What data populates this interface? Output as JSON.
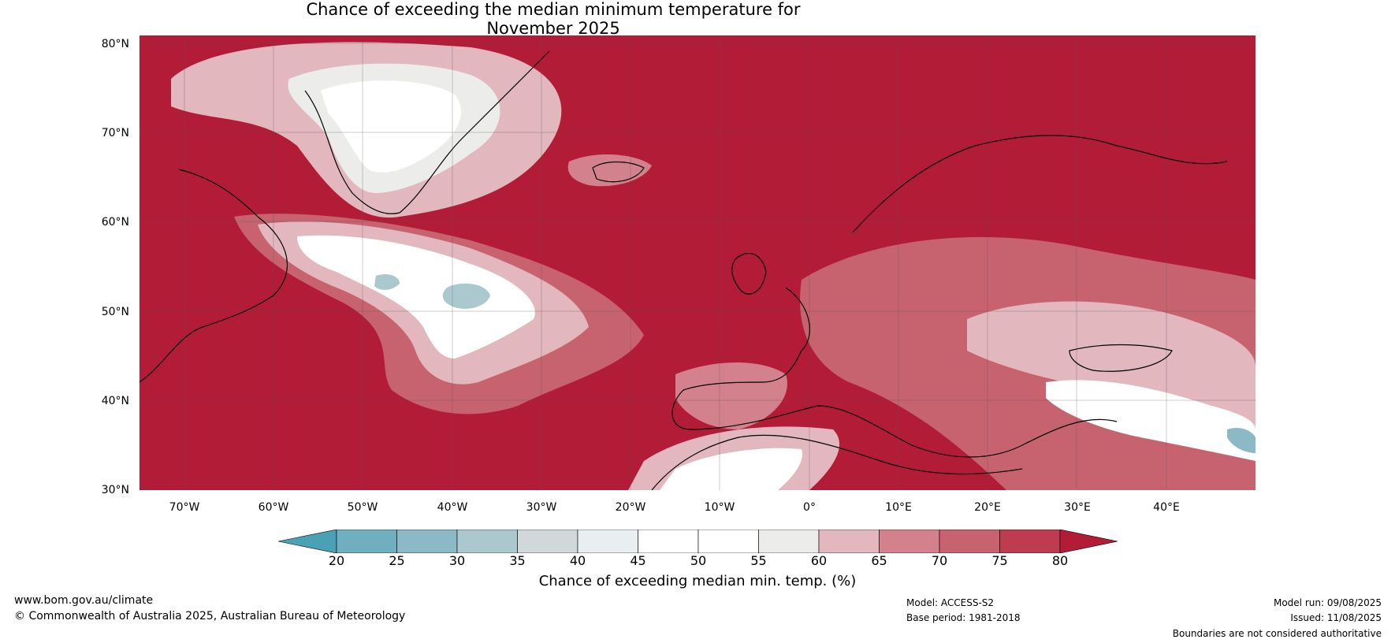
{
  "title_line1": "Chance of exceeding the median minimum temperature for",
  "title_line2": "November 2025",
  "lat_labels": [
    "80°N",
    "70°N",
    "60°N",
    "50°N",
    "40°N",
    "30°N"
  ],
  "lon_labels": [
    "70°W",
    "60°W",
    "50°W",
    "40°W",
    "30°W",
    "20°W",
    "10°W",
    "0°",
    "10°E",
    "20°E",
    "30°E",
    "40°E"
  ],
  "colorbar": {
    "ticks": [
      "20",
      "25",
      "30",
      "35",
      "40",
      "45",
      "50",
      "55",
      "60",
      "65",
      "70",
      "75",
      "80"
    ],
    "colors": [
      "#4ba1b4",
      "#6fafbf",
      "#8cb9c6",
      "#abc8cf",
      "#d0d8da",
      "#e9eff1",
      "#ffffff",
      "#ffffff",
      "#ececea",
      "#e2b7bd",
      "#d3818d",
      "#c7636f",
      "#bd3c50",
      "#b31c37"
    ],
    "title": "Chance of exceeding median min. temp. (%)"
  },
  "footer": {
    "url": "www.bom.gov.au/climate",
    "copyright": "© Commonwealth of Australia 2025, Australian Bureau of Meteorology",
    "model": "Model: ACCESS-S2",
    "base_period": "Base period: 1981-2018",
    "model_run": "Model run: 09/08/2025",
    "issued": "Issued: 11/08/2025",
    "disclaimer": "Boundaries are not considered authoritative"
  }
}
